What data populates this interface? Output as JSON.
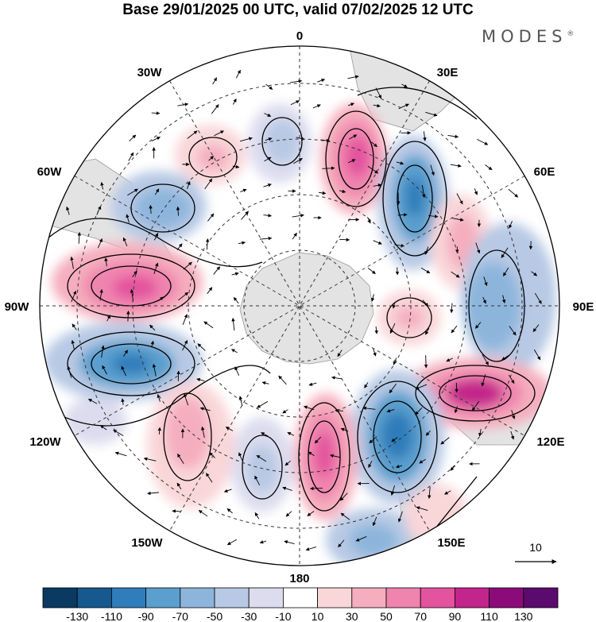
{
  "title": "Base 29/01/2025 00 UTC, valid 07/02/2025 12 UTC",
  "brand": "MODES",
  "brand_mark": "®",
  "longitude_labels": {
    "lon_0": "0",
    "lon_30e": "30E",
    "lon_60e": "60E",
    "lon_90e": "90E",
    "lon_120e": "120E",
    "lon_150e": "150E",
    "lon_180": "180",
    "lon_150w": "150W",
    "lon_120w": "120W",
    "lon_90w": "90W",
    "lon_60w": "60W",
    "lon_30w": "30W"
  },
  "reference_vector": {
    "label": "10"
  },
  "colorbar": {
    "colors": [
      "#0a3a62",
      "#15598f",
      "#2f7dba",
      "#5a9fce",
      "#8db5dc",
      "#b7c9e4",
      "#dcdcee",
      "#ffffff",
      "#f9d6d8",
      "#f5aebe",
      "#ef84ae",
      "#e3539e",
      "#c2258b",
      "#8c0b7a",
      "#5b0a6e"
    ],
    "tick_labels": [
      "-130",
      "-110",
      "-90",
      "-70",
      "-50",
      "-30",
      "-10",
      "10",
      "30",
      "50",
      "70",
      "90",
      "110",
      "130"
    ]
  }
}
